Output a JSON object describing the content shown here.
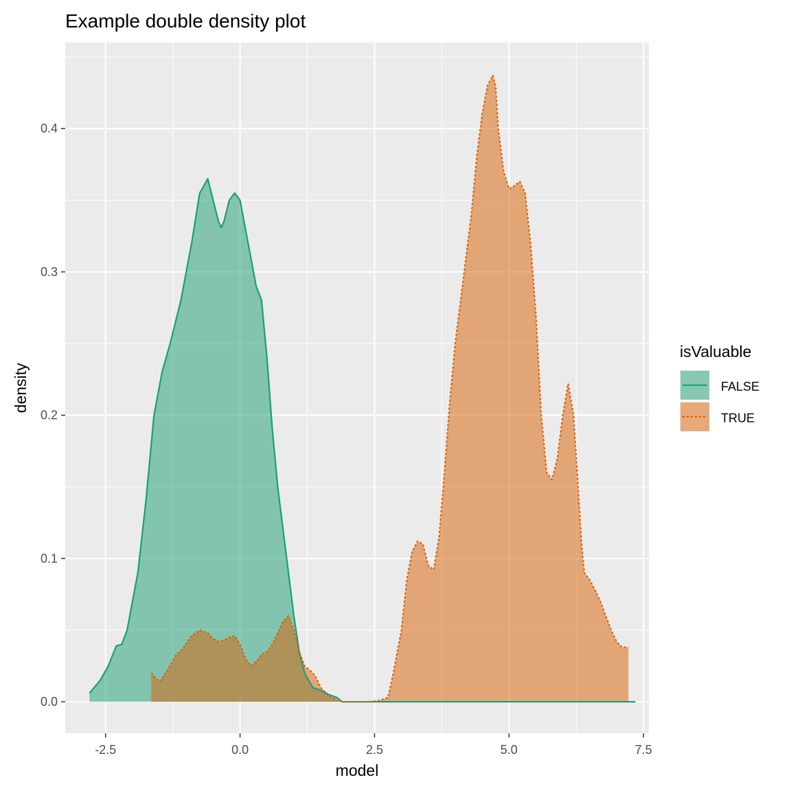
{
  "chart_data": {
    "type": "area",
    "title": "Example double density plot",
    "xlabel": "model",
    "ylabel": "density",
    "xlim": [
      -3.25,
      7.6
    ],
    "ylim": [
      -0.022,
      0.46
    ],
    "x_ticks": [
      -2.5,
      0.0,
      2.5,
      5.0,
      7.5
    ],
    "x_tick_labels": [
      "-2.5",
      "0.0",
      "2.5",
      "5.0",
      "7.5"
    ],
    "y_ticks": [
      0.0,
      0.1,
      0.2,
      0.3,
      0.4
    ],
    "y_tick_labels": [
      "0.0",
      "0.1",
      "0.2",
      "0.3",
      "0.4"
    ],
    "grid": true,
    "legend": {
      "title": "isValuable",
      "position": "right"
    },
    "series": [
      {
        "name": "FALSE",
        "color": "#1b9e77",
        "line_style": "solid",
        "x": [
          -2.8,
          -2.6,
          -2.45,
          -2.3,
          -2.2,
          -2.1,
          -2.0,
          -1.9,
          -1.75,
          -1.6,
          -1.45,
          -1.3,
          -1.1,
          -0.9,
          -0.75,
          -0.6,
          -0.5,
          -0.4,
          -0.35,
          -0.3,
          -0.2,
          -0.1,
          0.0,
          0.1,
          0.2,
          0.3,
          0.4,
          0.5,
          0.6,
          0.7,
          0.8,
          0.9,
          1.0,
          1.1,
          1.2,
          1.35,
          1.5,
          1.65,
          1.8,
          1.9,
          2.0,
          2.1,
          2.2,
          2.35,
          2.5,
          2.6,
          2.7,
          2.8,
          2.9,
          3.1,
          3.3,
          3.5,
          3.7,
          3.9,
          4.2,
          4.5,
          4.7,
          4.8,
          5.0,
          5.1,
          5.2,
          5.3,
          5.5,
          5.6,
          5.7,
          5.8,
          6.0,
          6.2,
          6.3,
          6.4,
          6.6,
          6.8,
          7.0,
          7.2,
          7.35
        ],
        "y": [
          0.006,
          0.015,
          0.025,
          0.039,
          0.04,
          0.05,
          0.07,
          0.09,
          0.14,
          0.2,
          0.23,
          0.25,
          0.28,
          0.32,
          0.355,
          0.365,
          0.35,
          0.335,
          0.331,
          0.335,
          0.35,
          0.355,
          0.35,
          0.33,
          0.31,
          0.29,
          0.28,
          0.24,
          0.19,
          0.15,
          0.12,
          0.09,
          0.06,
          0.035,
          0.02,
          0.01,
          0.008,
          0.005,
          0.003,
          0.0,
          0.0,
          0.0,
          0.0,
          0.0,
          0.0,
          0.0,
          0.0,
          0.0,
          0.0,
          0.0,
          0.0,
          0.0,
          0.0,
          0.0,
          0.0,
          0.0,
          0.0,
          0.0,
          0.0,
          0.0,
          0.0,
          0.0,
          0.0,
          0.0,
          0.0,
          0.0,
          0.0,
          0.0,
          0.0,
          0.0,
          0.0,
          0.0,
          0.0,
          0.0,
          0.0
        ]
      },
      {
        "name": "TRUE",
        "color": "#d95f02",
        "line_style": "dotted",
        "x": [
          -1.65,
          -1.5,
          -1.35,
          -1.2,
          -1.05,
          -0.9,
          -0.75,
          -0.6,
          -0.5,
          -0.4,
          -0.3,
          -0.2,
          -0.1,
          0.0,
          0.1,
          0.2,
          0.3,
          0.4,
          0.5,
          0.6,
          0.7,
          0.8,
          0.9,
          1.0,
          1.1,
          1.2,
          1.3,
          1.4,
          1.5,
          1.65,
          1.8,
          1.9,
          2.0,
          2.2,
          2.4,
          2.6,
          2.75,
          2.85,
          3.0,
          3.1,
          3.2,
          3.3,
          3.4,
          3.5,
          3.6,
          3.7,
          3.8,
          3.9,
          4.0,
          4.1,
          4.2,
          4.3,
          4.4,
          4.5,
          4.6,
          4.7,
          4.75,
          4.8,
          4.9,
          5.0,
          5.1,
          5.2,
          5.3,
          5.4,
          5.5,
          5.6,
          5.7,
          5.8,
          5.9,
          6.0,
          6.1,
          6.2,
          6.3,
          6.35,
          6.4,
          6.5,
          6.6,
          6.7,
          6.8,
          6.9,
          7.0,
          7.1,
          7.22
        ],
        "y": [
          0.02,
          0.014,
          0.022,
          0.032,
          0.038,
          0.046,
          0.05,
          0.048,
          0.044,
          0.042,
          0.043,
          0.045,
          0.046,
          0.04,
          0.03,
          0.025,
          0.028,
          0.033,
          0.035,
          0.04,
          0.048,
          0.056,
          0.06,
          0.05,
          0.035,
          0.025,
          0.022,
          0.018,
          0.01,
          0.004,
          0.001,
          0.0,
          0.0,
          0.0,
          0.0,
          0.001,
          0.003,
          0.02,
          0.05,
          0.085,
          0.105,
          0.112,
          0.11,
          0.095,
          0.092,
          0.115,
          0.16,
          0.21,
          0.25,
          0.28,
          0.31,
          0.34,
          0.38,
          0.41,
          0.43,
          0.437,
          0.43,
          0.4,
          0.37,
          0.358,
          0.36,
          0.363,
          0.355,
          0.32,
          0.27,
          0.2,
          0.16,
          0.155,
          0.17,
          0.2,
          0.222,
          0.2,
          0.14,
          0.11,
          0.09,
          0.085,
          0.078,
          0.07,
          0.06,
          0.05,
          0.042,
          0.038,
          0.038
        ]
      }
    ],
    "overlap_color": "#a68a55"
  }
}
